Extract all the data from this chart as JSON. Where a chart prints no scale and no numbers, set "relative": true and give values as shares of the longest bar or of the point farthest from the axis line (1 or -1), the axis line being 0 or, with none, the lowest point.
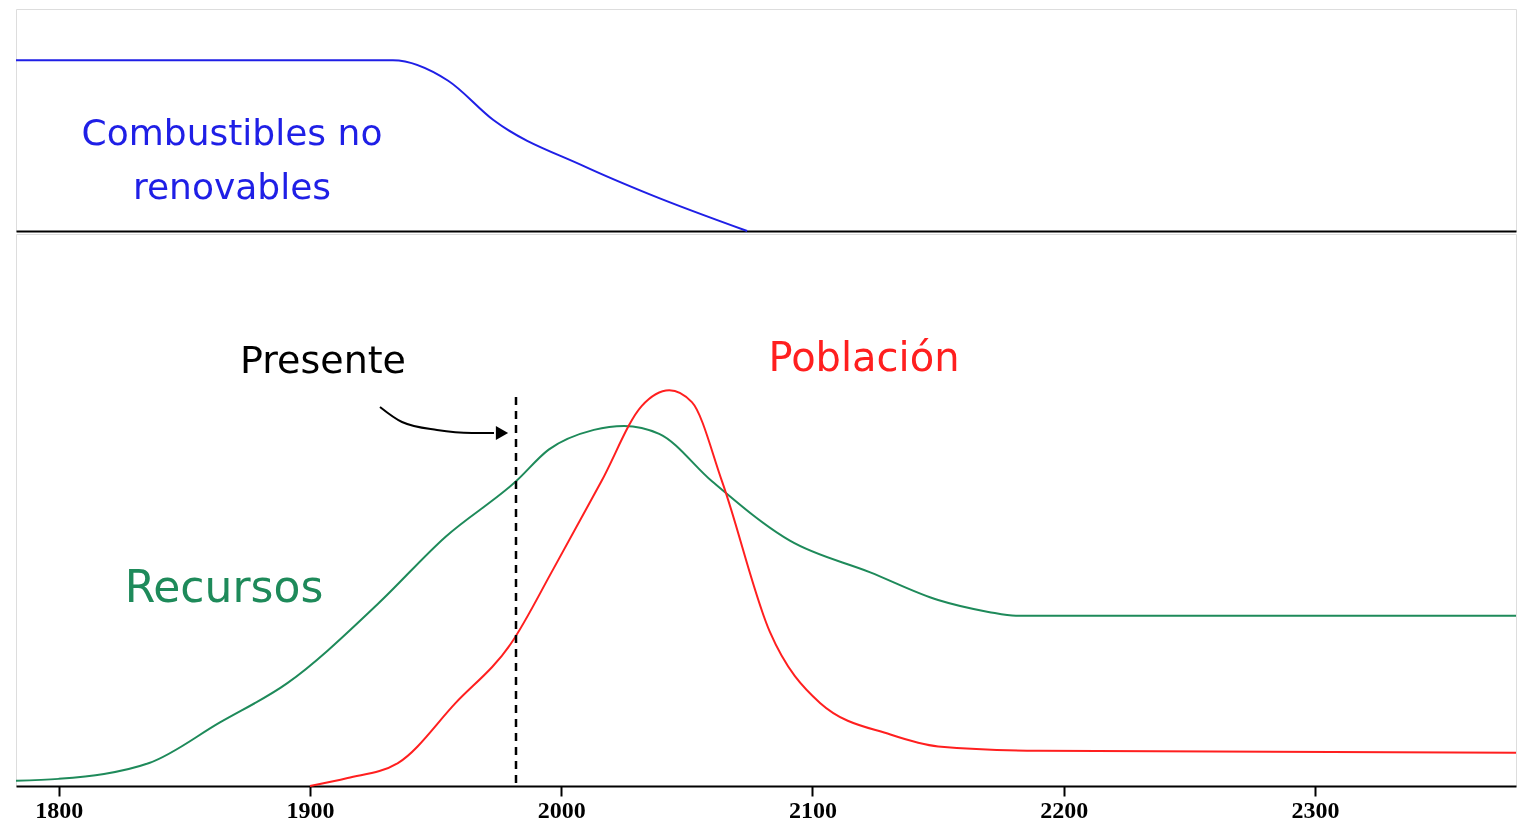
{
  "chart_data": [
    {
      "type": "line",
      "relative": true,
      "xlim": [
        1783,
        2380
      ],
      "tick_labels": false,
      "series": [
        {
          "name": "Combustibles no renovables",
          "color": "#1f1fe6",
          "x": [
            1783,
            1933,
            1955,
            1973,
            2009,
            2036,
            2074
          ],
          "values": [
            1,
            1,
            0.88,
            0.65,
            0.38,
            0.21,
            0
          ]
        }
      ]
    },
    {
      "type": "line",
      "relative": true,
      "xlim": [
        1783,
        2380
      ],
      "xticks": [
        1800,
        1900,
        2000,
        2100,
        2200,
        2300
      ],
      "tick_labels": "x",
      "series": [
        {
          "name": "Recursos",
          "color": "#1e8a5a",
          "x": [
            1783,
            1800,
            1836,
            1864,
            1891,
            1927,
            1954,
            1982,
            1995,
            2013,
            2025,
            2039,
            2060,
            2091,
            2123,
            2150,
            2170,
            2181,
            2380
          ],
          "values": [
            0.013,
            0.018,
            0.058,
            0.16,
            0.26,
            0.46,
            0.63,
            0.77,
            0.85,
            0.9,
            0.91,
            0.89,
            0.77,
            0.62,
            0.54,
            0.47,
            0.44,
            0.43,
            0.43
          ]
        },
        {
          "name": "Población",
          "color": "#ff1f1f",
          "x": [
            1900,
            1915,
            1935,
            1958,
            1980,
            1997,
            2016,
            2032,
            2043,
            2052,
            2064,
            2083,
            2103,
            2131,
            2150,
            2190,
            2380
          ],
          "values": [
            0,
            0.02,
            0.058,
            0.21,
            0.36,
            0.55,
            0.77,
            0.96,
            1,
            0.97,
            0.77,
            0.39,
            0.21,
            0.13,
            0.1,
            0.089,
            0.084
          ]
        }
      ],
      "ref_lines": [
        {
          "axis": "x",
          "value": 1982,
          "label": "Presente",
          "color": "#000000",
          "line_style": "dashed"
        }
      ]
    }
  ]
}
